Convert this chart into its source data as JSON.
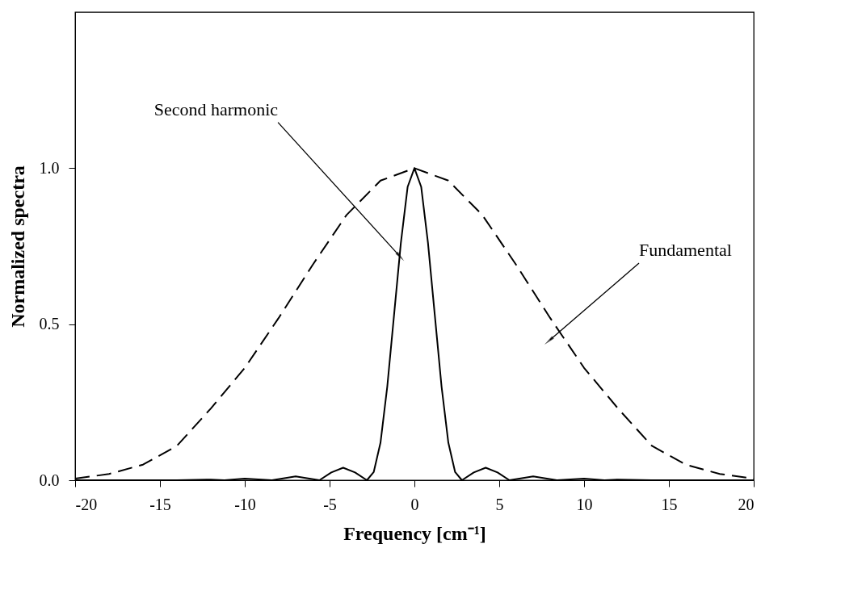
{
  "chart_data": {
    "type": "line",
    "xlabel": "Frequency [cm⁻¹]",
    "ylabel": "Normalized spectra",
    "xlim": [
      -20,
      20
    ],
    "ylim": [
      0,
      1.5
    ],
    "xticks": [
      -20,
      -15,
      -10,
      -5,
      0,
      5,
      10,
      15,
      20
    ],
    "yticks": [
      {
        "value": 0,
        "label": "0.0"
      },
      {
        "value": 0.5,
        "label": "0.5"
      },
      {
        "value": 1,
        "label": "1.0"
      }
    ],
    "grid": false,
    "marker": "none",
    "series": [
      {
        "color": "#000000",
        "line_style": "dashed",
        "x": [
          -20,
          -18,
          -16,
          -14,
          -12,
          -10,
          -8,
          -6,
          -4,
          -2,
          0,
          2,
          4,
          6,
          8,
          10,
          12,
          14,
          16,
          18,
          20
        ],
        "values": [
          0.005,
          0.02,
          0.05,
          0.11,
          0.23,
          0.36,
          0.52,
          0.69,
          0.85,
          0.96,
          1,
          0.96,
          0.85,
          0.69,
          0.52,
          0.36,
          0.23,
          0.11,
          0.05,
          0.02,
          0.005
        ]
      },
      {
        "color": "#000000",
        "line_style": "solid",
        "x": [
          -20,
          -14,
          -12,
          -11.2,
          -10,
          -8.4,
          -7,
          -5.6,
          -4.9,
          -4.2,
          -3.5,
          -2.8,
          -2.4,
          -2,
          -1.6,
          -1.2,
          -0.8,
          -0.4,
          0,
          0.4,
          0.8,
          1.2,
          1.6,
          2,
          2.4,
          2.8,
          3.5,
          4.2,
          4.9,
          5.6,
          7,
          8.4,
          10,
          11.2,
          12,
          14,
          20
        ],
        "values": [
          0,
          0,
          0.002,
          0,
          0.005,
          0,
          0.012,
          0,
          0.025,
          0.04,
          0.025,
          0,
          0.026,
          0.12,
          0.3,
          0.53,
          0.76,
          0.94,
          1,
          0.94,
          0.76,
          0.53,
          0.3,
          0.12,
          0.026,
          0,
          0.025,
          0.04,
          0.025,
          0,
          0.012,
          0,
          0.005,
          0,
          0.002,
          0,
          0
        ]
      }
    ],
    "annotations": [
      {
        "text": "Second harmonic",
        "x": -0.9,
        "y": 0.72
      },
      {
        "text": "Fundamental",
        "x": 8,
        "y": 0.45
      }
    ]
  }
}
